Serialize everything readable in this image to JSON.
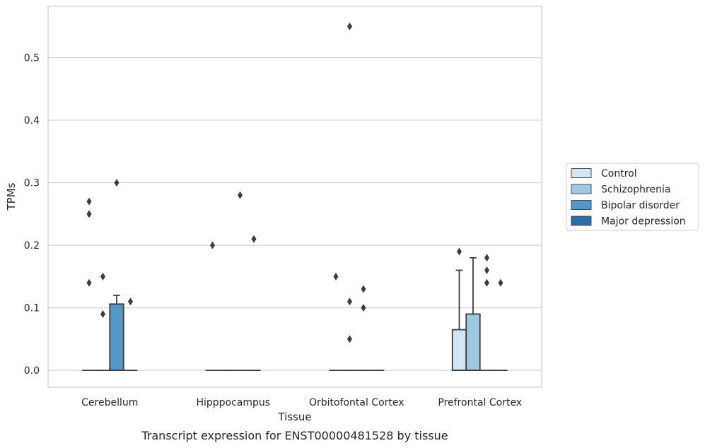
{
  "caption": "Transcript expression for ENST00000481528 by tissue",
  "chart_data": {
    "type": "box",
    "title": "",
    "xlabel": "Tissue",
    "ylabel": "TPMs",
    "ylim": [
      -0.027,
      0.582
    ],
    "yticks": [
      0.0,
      0.1,
      0.2,
      0.3,
      0.4,
      0.5
    ],
    "ytick_labels": [
      "0.0",
      "0.1",
      "0.2",
      "0.3",
      "0.4",
      "0.5"
    ],
    "grid": "horizontal",
    "legend_position": "right",
    "categories": [
      "Cerebellum",
      "Hipppocampus",
      "Orbitofontal Cortex",
      "Prefrontal Cortex"
    ],
    "series": [
      {
        "name": "Control",
        "color": "#d3e4f3",
        "boxes": [
          {
            "q1": 0,
            "median": 0,
            "q3": 0,
            "whislo": 0,
            "whishi": 0,
            "fliers": [
              0.14,
              0.25,
              0.27
            ]
          },
          {
            "q1": 0,
            "median": 0,
            "q3": 0,
            "whislo": 0,
            "whishi": 0,
            "fliers": [
              0.2
            ]
          },
          {
            "q1": 0,
            "median": 0,
            "q3": 0,
            "whislo": 0,
            "whishi": 0,
            "fliers": [
              0.15
            ]
          },
          {
            "q1": 0,
            "median": 0,
            "q3": 0.065,
            "whislo": 0,
            "whishi": 0.16,
            "fliers": [
              0.19
            ]
          }
        ]
      },
      {
        "name": "Schizophrenia",
        "color": "#9ec8e0",
        "boxes": [
          {
            "q1": 0,
            "median": 0,
            "q3": 0,
            "whislo": 0,
            "whishi": 0,
            "fliers": [
              0.09,
              0.15
            ]
          },
          {
            "q1": 0,
            "median": 0,
            "q3": 0,
            "whislo": 0,
            "whishi": 0,
            "fliers": []
          },
          {
            "q1": 0,
            "median": 0,
            "q3": 0,
            "whislo": 0,
            "whishi": 0,
            "fliers": [
              0.05,
              0.11,
              0.55
            ]
          },
          {
            "q1": 0,
            "median": 0,
            "q3": 0.09,
            "whislo": 0,
            "whishi": 0.18,
            "fliers": []
          }
        ]
      },
      {
        "name": "Bipolar disorder",
        "color": "#5696c6",
        "boxes": [
          {
            "q1": 0,
            "median": 0,
            "q3": 0.106,
            "whislo": 0,
            "whishi": 0.12,
            "fliers": [
              0.3
            ]
          },
          {
            "q1": 0,
            "median": 0,
            "q3": 0,
            "whislo": 0,
            "whishi": 0,
            "fliers": [
              0.28
            ]
          },
          {
            "q1": 0,
            "median": 0,
            "q3": 0,
            "whislo": 0,
            "whishi": 0,
            "fliers": [
              0.1,
              0.13
            ]
          },
          {
            "q1": 0,
            "median": 0,
            "q3": 0,
            "whislo": 0,
            "whishi": 0,
            "fliers": [
              0.14,
              0.16,
              0.18
            ]
          }
        ]
      },
      {
        "name": "Major depression",
        "color": "#2f6ea8",
        "boxes": [
          {
            "q1": 0,
            "median": 0,
            "q3": 0,
            "whislo": 0,
            "whishi": 0,
            "fliers": [
              0.11
            ]
          },
          {
            "q1": 0,
            "median": 0,
            "q3": 0,
            "whislo": 0,
            "whishi": 0,
            "fliers": [
              0.21
            ]
          },
          {
            "q1": 0,
            "median": 0,
            "q3": 0,
            "whislo": 0,
            "whishi": 0,
            "fliers": []
          },
          {
            "q1": 0,
            "median": 0,
            "q3": 0,
            "whislo": 0,
            "whishi": 0,
            "fliers": [
              0.14
            ]
          }
        ]
      }
    ]
  }
}
